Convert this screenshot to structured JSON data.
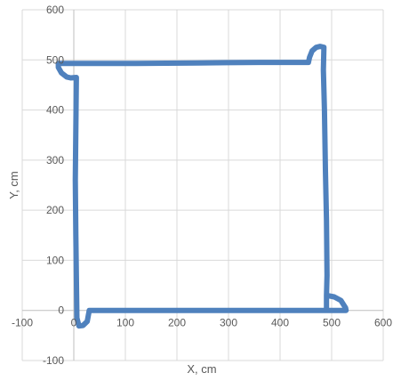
{
  "chart_data": {
    "type": "scatter",
    "title": "",
    "xlabel": "X, cm",
    "ylabel": "Y, cm",
    "xlim": [
      -100,
      600
    ],
    "ylim": [
      -100,
      600
    ],
    "x_ticks": [
      -100,
      0,
      100,
      200,
      300,
      400,
      500,
      600
    ],
    "y_ticks": [
      -100,
      0,
      100,
      200,
      300,
      400,
      500,
      600
    ],
    "grid": true,
    "legend": "none",
    "series": [
      {
        "color": "#4F81BD",
        "mode": "lines",
        "points": [
          [
            5,
            465
          ],
          [
            3,
            260
          ],
          [
            4,
            150
          ],
          [
            6,
            -15
          ],
          [
            10,
            -31
          ],
          [
            18,
            -30
          ],
          [
            26,
            -22
          ],
          [
            30,
            0
          ],
          [
            100,
            0
          ],
          [
            200,
            0
          ],
          [
            300,
            0
          ],
          [
            400,
            0
          ],
          [
            485,
            0
          ],
          [
            490,
            0
          ],
          [
            490,
            30
          ],
          [
            505,
            27
          ],
          [
            518,
            20
          ],
          [
            527,
            5
          ],
          [
            528,
            0
          ],
          [
            525,
            0
          ],
          [
            490,
            0
          ],
          [
            490,
            30
          ],
          [
            491,
            70
          ],
          [
            490,
            180
          ],
          [
            488,
            280
          ],
          [
            486,
            400
          ],
          [
            484,
            480
          ],
          [
            485,
            525
          ],
          [
            478,
            527
          ],
          [
            470,
            525
          ],
          [
            462,
            518
          ],
          [
            457,
            505
          ],
          [
            455,
            495
          ],
          [
            360,
            495
          ],
          [
            240,
            494
          ],
          [
            120,
            493
          ],
          [
            35,
            493
          ],
          [
            -30,
            493
          ],
          [
            -30,
            485
          ],
          [
            -24,
            474
          ],
          [
            -14,
            466
          ],
          [
            -6,
            464
          ],
          [
            5,
            465
          ]
        ]
      }
    ]
  }
}
